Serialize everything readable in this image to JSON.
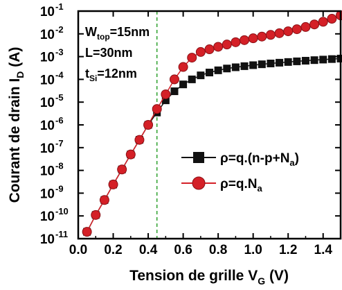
{
  "chart_data": {
    "type": "scatter",
    "xlabel": {
      "main": "Tension de grille V",
      "sub": "G",
      "unit": " (V)"
    },
    "ylabel": {
      "main": "Courant de drain I",
      "sub": "D",
      "unit": " (A)"
    },
    "x_range": [
      0.0,
      1.5
    ],
    "x_ticks": [
      0.0,
      0.2,
      0.4,
      0.6,
      0.8,
      1.0,
      1.2,
      1.4
    ],
    "x_tick_labels": [
      "0.0",
      "0.2",
      "0.4",
      "0.6",
      "0.8",
      "1.0",
      "1.2",
      "1.4"
    ],
    "y_scale": "log",
    "y_range": [
      1e-11,
      0.1
    ],
    "y_ticks": [
      {
        "base": "10",
        "exp": "-11"
      },
      {
        "base": "10",
        "exp": "-10"
      },
      {
        "base": "10",
        "exp": "-9"
      },
      {
        "base": "10",
        "exp": "-8"
      },
      {
        "base": "10",
        "exp": "-7"
      },
      {
        "base": "10",
        "exp": "-6"
      },
      {
        "base": "10",
        "exp": "-5"
      },
      {
        "base": "10",
        "exp": "-4"
      },
      {
        "base": "10",
        "exp": "-3"
      },
      {
        "base": "10",
        "exp": "-2"
      },
      {
        "base": "10",
        "exp": "-1"
      }
    ],
    "vline_x": 0.45,
    "annotations": [
      {
        "main": "W",
        "sub": "top",
        "rest": "=15nm"
      },
      {
        "main": "L=30nm",
        "sub": "",
        "rest": ""
      },
      {
        "main": "t",
        "sub": "Si",
        "rest": "=12nm"
      }
    ],
    "legend_position": "center-right",
    "series": [
      {
        "name": {
          "main": "ρ=q.(n-p+N",
          "sub": "a",
          "rest": ")"
        },
        "marker": "square",
        "color": "#111111",
        "x": [
          0.05,
          0.1,
          0.15,
          0.2,
          0.25,
          0.3,
          0.35,
          0.4,
          0.45,
          0.5,
          0.55,
          0.6,
          0.65,
          0.7,
          0.75,
          0.8,
          0.85,
          0.9,
          0.95,
          1.0,
          1.05,
          1.1,
          1.15,
          1.2,
          1.25,
          1.3,
          1.35,
          1.4,
          1.45,
          1.5
        ],
        "y": [
          2e-11,
          1.1e-10,
          5e-10,
          2.4e-09,
          1.1e-08,
          5e-08,
          2.2e-07,
          1e-06,
          3.5e-06,
          1.2e-05,
          3e-05,
          6e-05,
          0.0001,
          0.00015,
          0.0002,
          0.00025,
          0.0003,
          0.00034,
          0.00038,
          0.00042,
          0.00046,
          0.0005,
          0.00054,
          0.00058,
          0.00062,
          0.00066,
          0.0007,
          0.00074,
          0.00078,
          0.00082
        ]
      },
      {
        "name": {
          "main": "ρ=q.N",
          "sub": "a",
          "rest": ""
        },
        "marker": "circle",
        "color": "#d42027",
        "x": [
          0.05,
          0.1,
          0.15,
          0.2,
          0.25,
          0.3,
          0.35,
          0.4,
          0.45,
          0.5,
          0.55,
          0.6,
          0.65,
          0.7,
          0.75,
          0.8,
          0.85,
          0.9,
          0.95,
          1.0,
          1.05,
          1.1,
          1.15,
          1.2,
          1.25,
          1.3,
          1.35,
          1.4,
          1.45,
          1.5
        ],
        "y": [
          2e-11,
          1.1e-10,
          5e-10,
          2.4e-09,
          1.1e-08,
          5e-08,
          2.2e-07,
          1e-06,
          5e-06,
          2.2e-05,
          0.0001,
          0.00035,
          0.0009,
          0.0016,
          0.0021,
          0.0027,
          0.0034,
          0.0043,
          0.0053,
          0.0064,
          0.0076,
          0.009,
          0.0107,
          0.013,
          0.016,
          0.02,
          0.026,
          0.034,
          0.046,
          0.065
        ]
      }
    ]
  }
}
